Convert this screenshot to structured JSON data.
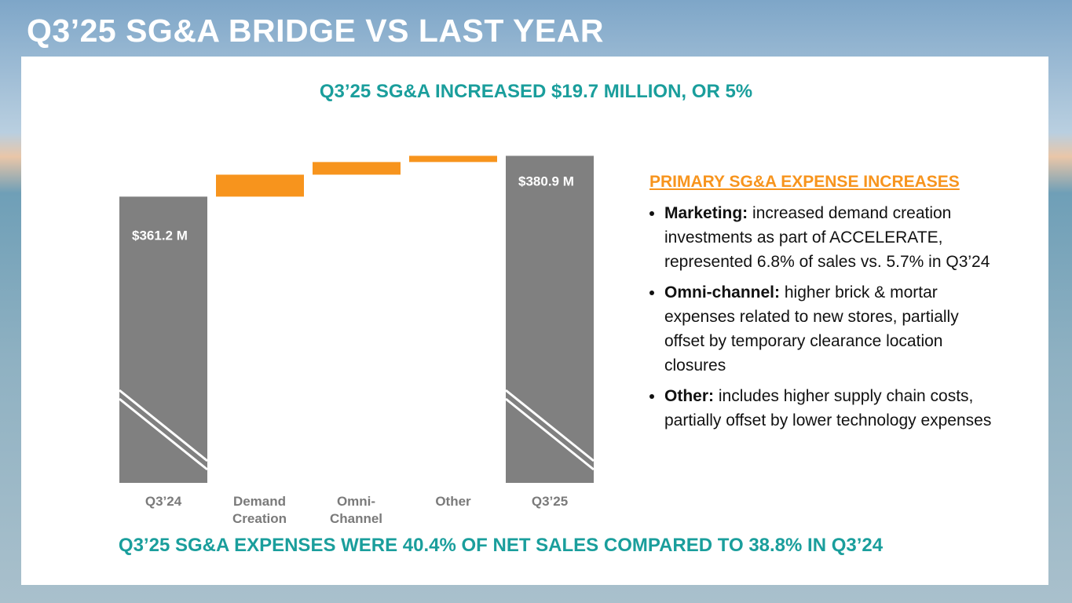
{
  "slide": {
    "title": "Q3’25 SG&A BRIDGE VS LAST YEAR",
    "subtitle": "Q3’25 SG&A INCREASED $19.7 MILLION, OR 5%",
    "footer": "Q3’25 SG&A EXPENSES WERE 40.4% OF NET SALES  COMPARED TO 38.8% IN Q3’24",
    "panel_heading": "PRIMARY SG&A EXPENSE INCREASES",
    "bullets": [
      {
        "label": "Marketing:",
        "text": "increased demand creation investments as part of ACCELERATE, represented 6.8% of sales vs. 5.7% in Q3’24"
      },
      {
        "label": "Omni-channel:",
        "text": "higher brick & mortar expenses related to new stores, partially offset by temporary clearance location closures"
      },
      {
        "label": "Other:",
        "text": "includes higher supply chain costs, partially offset by lower technology expenses"
      }
    ]
  },
  "chart_data": {
    "type": "waterfall",
    "categories": [
      "Q3’24",
      "Demand Creation",
      "Omni-Channel",
      "Other",
      "Q3’25"
    ],
    "values": [
      361.2,
      10.6,
      6.1,
      3.0,
      380.9
    ],
    "value_labels": [
      "$361.2 M",
      null,
      null,
      null,
      "$380.9 M"
    ],
    "measure": [
      "total",
      "relative",
      "relative",
      "relative",
      "total"
    ],
    "total_color": "#808080",
    "increase_color": "#f7941d",
    "ylim": [
      223,
      386
    ],
    "axis_break": true
  }
}
